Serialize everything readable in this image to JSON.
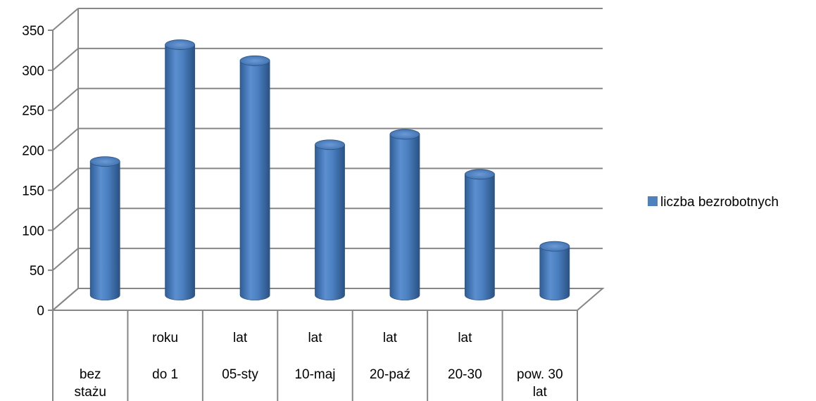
{
  "chart_data": {
    "type": "bar",
    "categories": [
      [
        "bez",
        "stażu"
      ],
      [
        "roku",
        "do 1"
      ],
      [
        "lat",
        "05-sty"
      ],
      [
        "lat",
        "10-maj"
      ],
      [
        "lat",
        "20-paź"
      ],
      [
        "lat",
        "20-30"
      ],
      [
        "pow. 30",
        "lat"
      ]
    ],
    "series": [
      {
        "name": "liczba bezrobotnych",
        "values": [
          167,
          313,
          293,
          188,
          201,
          151,
          61
        ],
        "color": "#4F81BD"
      }
    ],
    "ylim": [
      0,
      350
    ],
    "yticks": [
      "0",
      "50",
      "100",
      "150",
      "200",
      "250",
      "300",
      "350"
    ],
    "grid": true,
    "legend": "right",
    "style": "3d-cylinder"
  }
}
